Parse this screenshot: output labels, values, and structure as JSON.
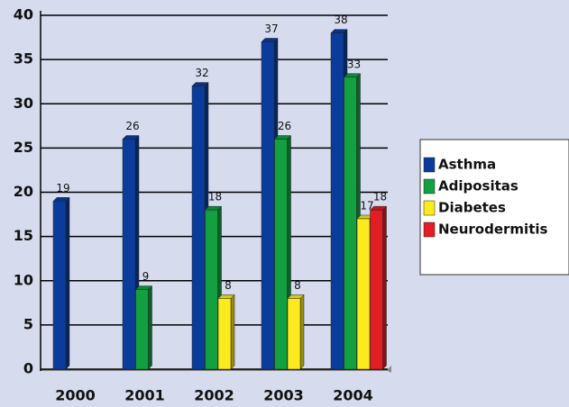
{
  "chart_data": {
    "type": "bar",
    "categories": [
      "2000",
      "2001",
      "2002",
      "2003",
      "2004"
    ],
    "series": [
      {
        "name": "Asthma",
        "color": "#0b3c9c",
        "values": [
          19,
          26,
          32,
          37,
          38
        ]
      },
      {
        "name": "Adipositas",
        "color": "#12a041",
        "values": [
          null,
          9,
          18,
          26,
          33
        ]
      },
      {
        "name": "Diabetes",
        "color": "#fbeb1e",
        "values": [
          null,
          null,
          8,
          8,
          17
        ]
      },
      {
        "name": "Neurodermitis",
        "color": "#e21d23",
        "values": [
          null,
          null,
          null,
          null,
          18
        ]
      }
    ],
    "ylim": [
      0,
      40
    ],
    "yticks": [
      0,
      5,
      10,
      15,
      20,
      25,
      30,
      35,
      40
    ],
    "grid": true,
    "legend": "right"
  }
}
